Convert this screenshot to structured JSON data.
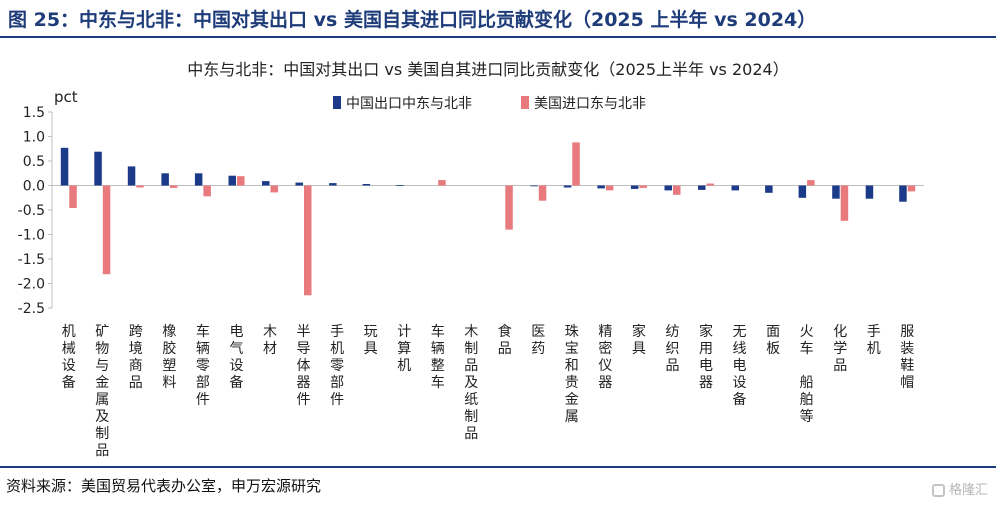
{
  "figure_title": "图 25：中东与北非：中国对其出口 vs 美国自其进口同比贡献变化（2025 上半年 vs 2024）",
  "source_note": "资料来源：美国贸易代表办公室，申万宏源研究",
  "watermark_text": "格隆汇",
  "colors": {
    "heading": "#1f3c7a",
    "series_china": "#1c3a8a",
    "series_us": "#e8797d",
    "axis": "#bfbfbf"
  },
  "chart_data": {
    "type": "bar",
    "title": "中东与北非：中国对其出口 vs 美国自其进口同比贡献变化（2025上半年 vs 2024）",
    "ylabel": "pct",
    "ylim": [
      -2.5,
      1.5
    ],
    "yticks": [
      "1.5",
      "1.0",
      "0.5",
      "0.0",
      "-0.5",
      "-1.0",
      "-1.5",
      "-2.0",
      "-2.5"
    ],
    "ytick_values": [
      1.5,
      1.0,
      0.5,
      0.0,
      -0.5,
      -1.0,
      -1.5,
      -2.0,
      -2.5
    ],
    "legend_position": "top",
    "grid": false,
    "categories": [
      "机械设备",
      "矿物与金属及制品",
      "跨境商品",
      "橡胶塑料",
      "车辆零部件",
      "电气设备",
      "木材",
      "半导体器件",
      "手机零部件",
      "玩具",
      "计算机",
      "车辆整车",
      "木制品及纸制品",
      "食品",
      "医药",
      "珠宝和贵金属",
      "精密仪器",
      "家具",
      "纺织品",
      "家用电器",
      "无线电设备",
      "面板",
      "火车 船舶等",
      "化学品",
      "手机",
      "服装鞋帽"
    ],
    "series": [
      {
        "name": "中国出口中东与北非",
        "color": "#1c3a8a",
        "values": [
          0.77,
          0.69,
          0.39,
          0.25,
          0.25,
          0.2,
          0.09,
          0.06,
          0.05,
          0.03,
          0.01,
          0.0,
          0.0,
          0.0,
          -0.01,
          -0.04,
          -0.06,
          -0.07,
          -0.1,
          -0.09,
          -0.1,
          -0.15,
          -0.25,
          -0.27,
          -0.27,
          -0.33
        ]
      },
      {
        "name": "美国进口东与北非",
        "color": "#e8797d",
        "values": [
          -0.46,
          -1.81,
          -0.04,
          -0.05,
          -0.22,
          0.19,
          -0.14,
          -2.24,
          0.0,
          0.0,
          0.0,
          0.11,
          0.0,
          -0.9,
          -0.31,
          0.88,
          -0.1,
          -0.05,
          -0.19,
          0.04,
          0.0,
          0.0,
          0.11,
          -0.72,
          0.0,
          -0.12
        ]
      }
    ]
  }
}
